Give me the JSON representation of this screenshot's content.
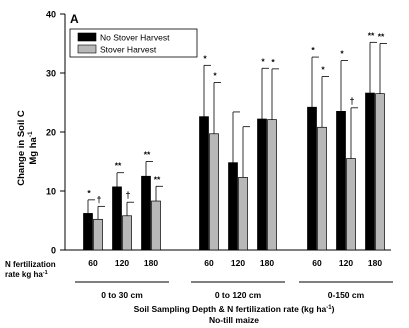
{
  "chart_data": {
    "type": "bar",
    "panel_label": "A",
    "xlabel": "Soil Sampling Depth & N fertilization rate (kg ha",
    "xlabel_sup": "-1",
    "xlabel_close": ")",
    "subtitle": "No-till maize",
    "ylabel": "Change in Soil C",
    "ylabel_unit": "Mg ha",
    "ylabel_unit_sup": "-1",
    "ylim": [
      0,
      40
    ],
    "yticks": [
      0,
      10,
      20,
      30,
      40
    ],
    "row_label": "N fertilization",
    "row_label_2": "rate kg ha",
    "row_label_2_sup": "-1",
    "groups": [
      {
        "label": "0 to 30 cm",
        "categories": [
          "60",
          "120",
          "180"
        ]
      },
      {
        "label": "0 to 120 cm",
        "categories": [
          "60",
          "120",
          "180"
        ]
      },
      {
        "label": "0-150 cm",
        "categories": [
          "60",
          "120",
          "180"
        ]
      }
    ],
    "series": [
      {
        "name": "No Stover Harvest",
        "color": "#000000",
        "values": [
          6.2,
          10.7,
          12.5,
          22.6,
          14.8,
          22.2,
          24.2,
          23.5,
          26.6
        ],
        "error": [
          2.3,
          2.4,
          2.5,
          8.7,
          8.6,
          8.6,
          8.5,
          8.6,
          8.6
        ],
        "markers": [
          "*",
          "**",
          "**",
          "*",
          "",
          "*",
          "*",
          "*",
          "**"
        ]
      },
      {
        "name": "Stover Harvest",
        "color": "#b8b8b8",
        "values": [
          5.2,
          5.8,
          8.3,
          19.7,
          12.3,
          22.1,
          20.8,
          15.5,
          26.5
        ],
        "error": [
          2.2,
          2.3,
          2.5,
          8.7,
          8.6,
          8.6,
          8.6,
          8.6,
          8.5
        ],
        "markers": [
          "†",
          "†",
          "**",
          "*",
          "",
          "*",
          "*",
          "†",
          "**"
        ]
      }
    ],
    "legend_position": "top-left",
    "grid": false
  }
}
